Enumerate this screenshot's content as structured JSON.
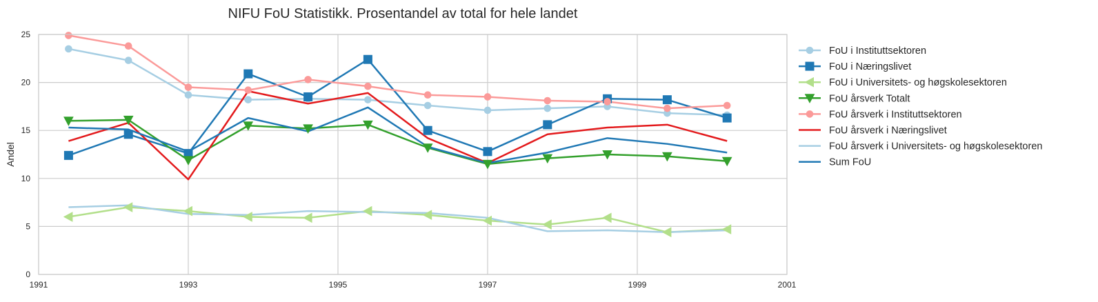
{
  "chart_data": {
    "type": "line",
    "title": "NIFU FoU Statistikk. Prosentandel av total for hele landet",
    "xlabel": "",
    "ylabel": "Andel",
    "xlim": [
      1991,
      2001
    ],
    "ylim": [
      0,
      25
    ],
    "xticks": [
      "1991",
      "1993",
      "1995",
      "1997",
      "1999",
      "2001"
    ],
    "yticks": [
      "0",
      "5",
      "10",
      "15",
      "20",
      "25"
    ],
    "grid": true,
    "legend_position": "outside-right",
    "x": [
      1991.4,
      1992.2,
      1993.0,
      1993.8,
      1994.6,
      1995.4,
      1996.2,
      1997.0,
      1997.8,
      1998.6,
      1999.4,
      2000.2
    ],
    "series": [
      {
        "name": "FoU i Instituttsektoren",
        "color": "#a6cee3",
        "marker": "circle",
        "values": [
          23.5,
          22.3,
          18.7,
          18.2,
          18.3,
          18.2,
          17.6,
          17.1,
          17.3,
          17.5,
          16.8,
          16.6
        ]
      },
      {
        "name": "FoU i Næringslivet",
        "color": "#1f78b4",
        "marker": "square",
        "values": [
          12.4,
          14.6,
          12.6,
          20.9,
          18.5,
          22.4,
          15.0,
          12.8,
          15.6,
          18.3,
          18.2,
          16.3
        ]
      },
      {
        "name": "FoU i Universitets- og høgskolesektoren",
        "color": "#b2df8a",
        "marker": "triangle-left",
        "values": [
          6.0,
          7.0,
          6.6,
          6.0,
          5.9,
          6.6,
          6.2,
          5.6,
          5.2,
          5.9,
          4.4,
          4.7
        ]
      },
      {
        "name": "FoU årsverk Totalt",
        "color": "#33a02c",
        "marker": "triangle-down",
        "values": [
          16.0,
          16.1,
          11.9,
          15.5,
          15.2,
          15.6,
          13.2,
          11.5,
          12.1,
          12.5,
          12.3,
          11.8
        ]
      },
      {
        "name": "FoU årsverk i Instituttsektoren",
        "color": "#fb9a99",
        "marker": "circle",
        "values": [
          24.9,
          23.8,
          19.5,
          19.2,
          20.3,
          19.6,
          18.7,
          18.5,
          18.1,
          18.0,
          17.3,
          17.6
        ]
      },
      {
        "name": "FoU årsverk i Næringslivet",
        "color": "#e31a1c",
        "marker": "none",
        "values": [
          13.9,
          15.8,
          9.9,
          19.1,
          17.8,
          18.9,
          14.2,
          11.6,
          14.6,
          15.3,
          15.6,
          13.9
        ]
      },
      {
        "name": "FoU årsverk i Universitets- og høgskolesektoren",
        "color": "#a6cee3",
        "marker": "none",
        "values": [
          7.0,
          7.2,
          6.3,
          6.2,
          6.6,
          6.5,
          6.4,
          5.9,
          4.5,
          4.6,
          4.4,
          4.6
        ]
      },
      {
        "name": "Sum FoU",
        "color": "#1f78b4",
        "marker": "none",
        "values": [
          15.3,
          15.1,
          12.8,
          16.3,
          14.9,
          17.4,
          13.3,
          11.6,
          12.7,
          14.2,
          13.6,
          12.7
        ]
      }
    ]
  }
}
